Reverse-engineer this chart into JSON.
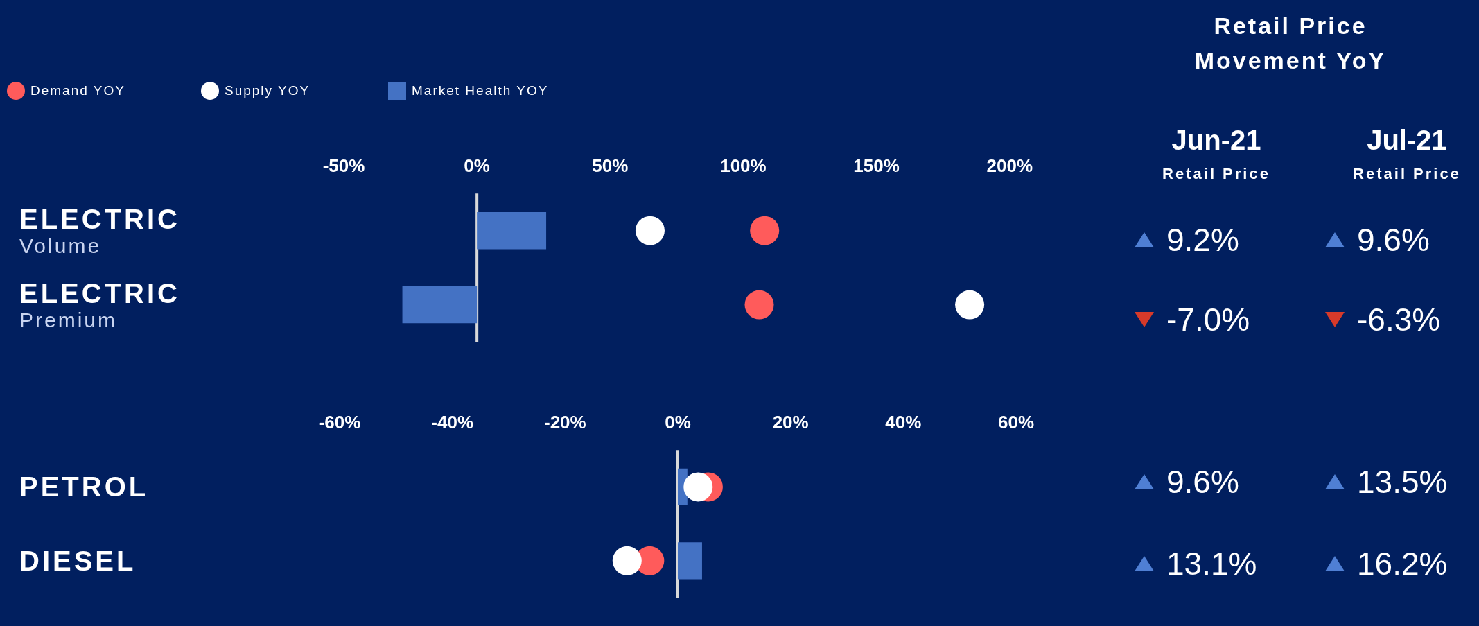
{
  "chart_data": [
    {
      "type": "bar",
      "orientation": "horizontal",
      "categories": [
        "ELECTRIC Volume",
        "ELECTRIC Premium"
      ],
      "xlim": [
        -50,
        200
      ],
      "xticks": [
        {
          "value": -50,
          "label": "-50%"
        },
        {
          "value": 0,
          "label": "0%"
        },
        {
          "value": 50,
          "label": "50%"
        },
        {
          "value": 100,
          "label": "100%"
        },
        {
          "value": 150,
          "label": "150%"
        },
        {
          "value": 200,
          "label": "200%"
        }
      ],
      "legend": "top left",
      "marker": "circle",
      "ref_lines": [
        {
          "axis": "x",
          "value": 0,
          "color": "#d9d9d9"
        }
      ],
      "series": [
        {
          "name": "Demand YOY",
          "type": "scatter",
          "color": "#ff5b5b",
          "values": [
            108,
            106
          ]
        },
        {
          "name": "Supply YOY",
          "type": "scatter",
          "color": "#ffffff",
          "values": [
            65,
            185
          ]
        },
        {
          "name": "Market Health YOY",
          "type": "bar",
          "color": "#4472c4",
          "values": [
            26,
            -28
          ]
        }
      ]
    },
    {
      "type": "bar",
      "orientation": "horizontal",
      "categories": [
        "PETROL",
        "DIESEL"
      ],
      "xlim": [
        -60,
        60
      ],
      "xticks": [
        {
          "value": -60,
          "label": "-60%"
        },
        {
          "value": -40,
          "label": "-40%"
        },
        {
          "value": -20,
          "label": "-20%"
        },
        {
          "value": 0,
          "label": "0%"
        },
        {
          "value": 20,
          "label": "20%"
        },
        {
          "value": 40,
          "label": "40%"
        },
        {
          "value": 60,
          "label": "60%"
        }
      ],
      "marker": "circle",
      "ref_lines": [
        {
          "axis": "x",
          "value": 0,
          "color": "#d9d9d9"
        }
      ],
      "series": [
        {
          "type": "scatter",
          "color": "#ff5b5b",
          "values": [
            5.4,
            -5
          ]
        },
        {
          "type": "scatter",
          "color": "#ffffff",
          "values": [
            3.6,
            -9
          ]
        },
        {
          "type": "bar",
          "color": "#4472c4",
          "values": [
            1.7,
            4.3
          ]
        }
      ]
    },
    {
      "type": "other",
      "title": "Retail Price Movement YoY",
      "annotations": [
        "Jun-21",
        "Retail Price",
        "Jul-21",
        "Retail Price",
        "9.2%",
        "9.6%",
        "-7.0%",
        "-6.3%",
        "9.6%",
        "13.5%",
        "13.1%",
        "16.2%"
      ]
    }
  ]
}
